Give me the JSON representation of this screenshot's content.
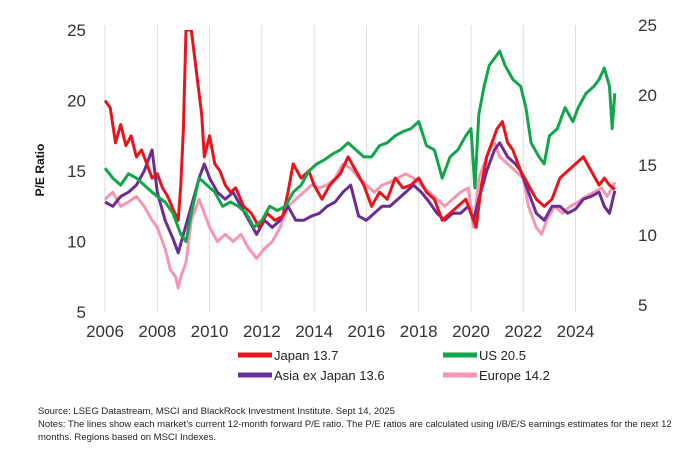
{
  "chart_data": {
    "type": "line",
    "ylabel": "P/E Ratio",
    "xlim": [
      2006,
      2025.7
    ],
    "ylim": [
      5,
      25
    ],
    "right_ylim": [
      5,
      25
    ],
    "x_ticks": [
      "2006",
      "2008",
      "2010",
      "2012",
      "2014",
      "2016",
      "2018",
      "2020",
      "2022",
      "2024"
    ],
    "y_ticks": [
      "5",
      "10",
      "15",
      "20",
      "25"
    ],
    "right_y_ticks": [
      "5",
      "10",
      "15",
      "20",
      "25"
    ],
    "grid": "vertical",
    "legend_position": "bottom",
    "series": [
      {
        "name": "Japan 13.7",
        "color": "#e8141c",
        "points": [
          [
            2006.0,
            20.0
          ],
          [
            2006.2,
            19.5
          ],
          [
            2006.4,
            17.0
          ],
          [
            2006.6,
            18.3
          ],
          [
            2006.8,
            16.8
          ],
          [
            2007.0,
            17.5
          ],
          [
            2007.2,
            16.0
          ],
          [
            2007.4,
            16.5
          ],
          [
            2007.6,
            15.5
          ],
          [
            2007.8,
            14.5
          ],
          [
            2008.0,
            14.8
          ],
          [
            2008.2,
            13.8
          ],
          [
            2008.4,
            13.2
          ],
          [
            2008.6,
            12.3
          ],
          [
            2008.8,
            11.5
          ],
          [
            2008.9,
            14.0
          ],
          [
            2009.0,
            18.0
          ],
          [
            2009.1,
            25.0
          ],
          [
            2009.3,
            25.0
          ],
          [
            2009.5,
            22.0
          ],
          [
            2009.7,
            19.0
          ],
          [
            2009.8,
            16.0
          ],
          [
            2010.0,
            17.5
          ],
          [
            2010.2,
            15.5
          ],
          [
            2010.4,
            15.0
          ],
          [
            2010.6,
            14.0
          ],
          [
            2010.8,
            13.5
          ],
          [
            2011.0,
            13.8
          ],
          [
            2011.3,
            12.5
          ],
          [
            2011.6,
            12.0
          ],
          [
            2011.9,
            11.0
          ],
          [
            2012.2,
            12.0
          ],
          [
            2012.5,
            11.5
          ],
          [
            2012.8,
            11.8
          ],
          [
            2013.0,
            13.5
          ],
          [
            2013.2,
            15.5
          ],
          [
            2013.5,
            14.5
          ],
          [
            2013.8,
            15.0
          ],
          [
            2014.0,
            14.0
          ],
          [
            2014.3,
            13.0
          ],
          [
            2014.6,
            14.0
          ],
          [
            2015.0,
            14.8
          ],
          [
            2015.3,
            16.0
          ],
          [
            2015.6,
            15.0
          ],
          [
            2015.9,
            14.0
          ],
          [
            2016.2,
            12.5
          ],
          [
            2016.5,
            13.5
          ],
          [
            2016.8,
            13.0
          ],
          [
            2017.1,
            14.5
          ],
          [
            2017.4,
            13.8
          ],
          [
            2017.7,
            14.0
          ],
          [
            2018.0,
            14.5
          ],
          [
            2018.3,
            13.5
          ],
          [
            2018.6,
            13.0
          ],
          [
            2018.9,
            11.5
          ],
          [
            2019.2,
            12.0
          ],
          [
            2019.5,
            12.5
          ],
          [
            2019.8,
            13.0
          ],
          [
            2020.0,
            12.0
          ],
          [
            2020.2,
            11.0
          ],
          [
            2020.4,
            14.0
          ],
          [
            2020.6,
            16.0
          ],
          [
            2020.8,
            17.0
          ],
          [
            2021.0,
            18.0
          ],
          [
            2021.2,
            18.5
          ],
          [
            2021.4,
            17.0
          ],
          [
            2021.6,
            16.5
          ],
          [
            2021.9,
            15.0
          ],
          [
            2022.2,
            14.0
          ],
          [
            2022.5,
            13.0
          ],
          [
            2022.8,
            12.5
          ],
          [
            2023.1,
            13.0
          ],
          [
            2023.4,
            14.5
          ],
          [
            2023.7,
            15.0
          ],
          [
            2024.0,
            15.5
          ],
          [
            2024.3,
            16.0
          ],
          [
            2024.6,
            15.0
          ],
          [
            2024.9,
            14.0
          ],
          [
            2025.1,
            14.5
          ],
          [
            2025.3,
            14.0
          ],
          [
            2025.5,
            13.7
          ]
        ]
      },
      {
        "name": "US 20.5",
        "color": "#12a54a",
        "points": [
          [
            2006.0,
            15.2
          ],
          [
            2006.3,
            14.5
          ],
          [
            2006.6,
            14.0
          ],
          [
            2006.9,
            14.8
          ],
          [
            2007.2,
            14.5
          ],
          [
            2007.5,
            14.0
          ],
          [
            2007.8,
            13.5
          ],
          [
            2008.0,
            13.2
          ],
          [
            2008.3,
            12.8
          ],
          [
            2008.6,
            12.0
          ],
          [
            2008.9,
            10.5
          ],
          [
            2009.1,
            10.0
          ],
          [
            2009.3,
            12.0
          ],
          [
            2009.6,
            14.5
          ],
          [
            2009.9,
            14.0
          ],
          [
            2010.2,
            13.5
          ],
          [
            2010.5,
            12.5
          ],
          [
            2010.8,
            12.8
          ],
          [
            2011.1,
            12.5
          ],
          [
            2011.4,
            12.0
          ],
          [
            2011.7,
            11.0
          ],
          [
            2012.0,
            11.5
          ],
          [
            2012.3,
            12.5
          ],
          [
            2012.6,
            12.2
          ],
          [
            2012.9,
            12.5
          ],
          [
            2013.2,
            13.5
          ],
          [
            2013.5,
            14.0
          ],
          [
            2013.8,
            15.0
          ],
          [
            2014.1,
            15.5
          ],
          [
            2014.4,
            15.8
          ],
          [
            2014.7,
            16.2
          ],
          [
            2015.0,
            16.5
          ],
          [
            2015.3,
            17.0
          ],
          [
            2015.6,
            16.5
          ],
          [
            2015.9,
            16.0
          ],
          [
            2016.2,
            16.0
          ],
          [
            2016.5,
            16.8
          ],
          [
            2016.8,
            17.0
          ],
          [
            2017.1,
            17.5
          ],
          [
            2017.4,
            17.8
          ],
          [
            2017.7,
            18.0
          ],
          [
            2018.0,
            18.5
          ],
          [
            2018.3,
            16.8
          ],
          [
            2018.6,
            16.5
          ],
          [
            2018.9,
            14.5
          ],
          [
            2019.2,
            16.0
          ],
          [
            2019.5,
            16.5
          ],
          [
            2019.8,
            17.5
          ],
          [
            2020.0,
            18.0
          ],
          [
            2020.15,
            13.8
          ],
          [
            2020.3,
            19.0
          ],
          [
            2020.5,
            21.0
          ],
          [
            2020.7,
            22.5
          ],
          [
            2020.9,
            23.0
          ],
          [
            2021.1,
            23.5
          ],
          [
            2021.3,
            22.5
          ],
          [
            2021.6,
            21.5
          ],
          [
            2021.9,
            21.0
          ],
          [
            2022.1,
            19.5
          ],
          [
            2022.3,
            17.0
          ],
          [
            2022.6,
            16.0
          ],
          [
            2022.8,
            15.5
          ],
          [
            2023.0,
            17.5
          ],
          [
            2023.3,
            18.0
          ],
          [
            2023.6,
            19.5
          ],
          [
            2023.9,
            18.5
          ],
          [
            2024.1,
            19.5
          ],
          [
            2024.4,
            20.5
          ],
          [
            2024.7,
            21.0
          ],
          [
            2024.9,
            21.5
          ],
          [
            2025.1,
            22.3
          ],
          [
            2025.3,
            21.0
          ],
          [
            2025.4,
            18.0
          ],
          [
            2025.5,
            20.5
          ]
        ]
      },
      {
        "name": "Asia ex Japan 13.6",
        "color": "#6b2d94",
        "points": [
          [
            2006.0,
            12.8
          ],
          [
            2006.3,
            12.5
          ],
          [
            2006.6,
            13.2
          ],
          [
            2006.9,
            13.5
          ],
          [
            2007.2,
            14.0
          ],
          [
            2007.5,
            15.0
          ],
          [
            2007.8,
            16.5
          ],
          [
            2008.0,
            13.5
          ],
          [
            2008.3,
            11.5
          ],
          [
            2008.6,
            10.2
          ],
          [
            2008.8,
            9.2
          ],
          [
            2009.0,
            10.5
          ],
          [
            2009.3,
            12.5
          ],
          [
            2009.6,
            14.5
          ],
          [
            2009.8,
            15.5
          ],
          [
            2010.0,
            14.5
          ],
          [
            2010.3,
            13.5
          ],
          [
            2010.6,
            13.0
          ],
          [
            2010.9,
            13.5
          ],
          [
            2011.2,
            12.5
          ],
          [
            2011.5,
            11.5
          ],
          [
            2011.8,
            10.5
          ],
          [
            2012.1,
            11.5
          ],
          [
            2012.4,
            11.0
          ],
          [
            2012.7,
            11.5
          ],
          [
            2013.0,
            12.5
          ],
          [
            2013.3,
            11.5
          ],
          [
            2013.6,
            11.5
          ],
          [
            2013.9,
            11.8
          ],
          [
            2014.2,
            12.0
          ],
          [
            2014.5,
            12.5
          ],
          [
            2014.8,
            12.8
          ],
          [
            2015.1,
            13.5
          ],
          [
            2015.4,
            14.0
          ],
          [
            2015.7,
            11.8
          ],
          [
            2016.0,
            11.5
          ],
          [
            2016.3,
            12.0
          ],
          [
            2016.6,
            12.5
          ],
          [
            2016.9,
            12.5
          ],
          [
            2017.2,
            13.0
          ],
          [
            2017.5,
            13.5
          ],
          [
            2017.8,
            14.0
          ],
          [
            2018.1,
            13.5
          ],
          [
            2018.4,
            12.8
          ],
          [
            2018.7,
            12.0
          ],
          [
            2019.0,
            11.5
          ],
          [
            2019.3,
            12.0
          ],
          [
            2019.6,
            12.0
          ],
          [
            2019.9,
            12.5
          ],
          [
            2020.1,
            11.5
          ],
          [
            2020.3,
            13.0
          ],
          [
            2020.6,
            15.0
          ],
          [
            2020.9,
            16.5
          ],
          [
            2021.1,
            17.0
          ],
          [
            2021.4,
            16.0
          ],
          [
            2021.7,
            15.5
          ],
          [
            2021.9,
            15.0
          ],
          [
            2022.2,
            13.5
          ],
          [
            2022.5,
            12.0
          ],
          [
            2022.8,
            11.5
          ],
          [
            2023.1,
            12.5
          ],
          [
            2023.4,
            12.5
          ],
          [
            2023.7,
            12.0
          ],
          [
            2024.0,
            12.3
          ],
          [
            2024.3,
            13.0
          ],
          [
            2024.6,
            13.2
          ],
          [
            2024.9,
            13.5
          ],
          [
            2025.1,
            12.5
          ],
          [
            2025.3,
            12.0
          ],
          [
            2025.5,
            13.6
          ]
        ]
      },
      {
        "name": "Europe  14.2",
        "color": "#f397b2",
        "points": [
          [
            2006.0,
            13.0
          ],
          [
            2006.3,
            13.5
          ],
          [
            2006.6,
            12.5
          ],
          [
            2006.9,
            12.8
          ],
          [
            2007.2,
            13.2
          ],
          [
            2007.5,
            12.5
          ],
          [
            2007.8,
            11.5
          ],
          [
            2008.0,
            11.0
          ],
          [
            2008.3,
            9.5
          ],
          [
            2008.5,
            8.0
          ],
          [
            2008.7,
            7.5
          ],
          [
            2008.8,
            6.7
          ],
          [
            2008.9,
            7.5
          ],
          [
            2009.1,
            8.5
          ],
          [
            2009.3,
            11.5
          ],
          [
            2009.6,
            13.0
          ],
          [
            2009.8,
            12.0
          ],
          [
            2010.0,
            11.0
          ],
          [
            2010.3,
            10.0
          ],
          [
            2010.6,
            10.5
          ],
          [
            2010.9,
            10.0
          ],
          [
            2011.2,
            10.5
          ],
          [
            2011.5,
            9.5
          ],
          [
            2011.8,
            8.8
          ],
          [
            2012.1,
            9.5
          ],
          [
            2012.4,
            10.0
          ],
          [
            2012.7,
            11.0
          ],
          [
            2013.0,
            12.5
          ],
          [
            2013.3,
            13.0
          ],
          [
            2013.6,
            13.5
          ],
          [
            2013.9,
            14.0
          ],
          [
            2014.2,
            13.8
          ],
          [
            2014.5,
            14.0
          ],
          [
            2014.8,
            14.5
          ],
          [
            2015.1,
            15.5
          ],
          [
            2015.4,
            15.2
          ],
          [
            2015.7,
            14.5
          ],
          [
            2016.0,
            14.0
          ],
          [
            2016.3,
            13.5
          ],
          [
            2016.6,
            14.0
          ],
          [
            2016.9,
            14.2
          ],
          [
            2017.2,
            14.5
          ],
          [
            2017.5,
            14.8
          ],
          [
            2017.8,
            14.5
          ],
          [
            2018.1,
            14.0
          ],
          [
            2018.4,
            13.5
          ],
          [
            2018.7,
            13.0
          ],
          [
            2019.0,
            12.5
          ],
          [
            2019.3,
            13.0
          ],
          [
            2019.6,
            13.5
          ],
          [
            2019.9,
            13.8
          ],
          [
            2020.1,
            11.0
          ],
          [
            2020.3,
            14.5
          ],
          [
            2020.5,
            15.5
          ],
          [
            2020.7,
            16.5
          ],
          [
            2020.9,
            17.0
          ],
          [
            2021.1,
            16.0
          ],
          [
            2021.4,
            15.5
          ],
          [
            2021.7,
            15.0
          ],
          [
            2022.0,
            14.5
          ],
          [
            2022.2,
            12.5
          ],
          [
            2022.5,
            11.0
          ],
          [
            2022.7,
            10.5
          ],
          [
            2022.9,
            11.5
          ],
          [
            2023.2,
            12.5
          ],
          [
            2023.5,
            12.0
          ],
          [
            2023.8,
            12.5
          ],
          [
            2024.1,
            12.8
          ],
          [
            2024.4,
            13.2
          ],
          [
            2024.7,
            13.5
          ],
          [
            2025.0,
            13.8
          ],
          [
            2025.2,
            13.2
          ],
          [
            2025.4,
            13.8
          ],
          [
            2025.5,
            14.2
          ]
        ]
      }
    ]
  },
  "notes": {
    "source": "Source: LSEG Datastream, MSCI and BlackRock Investment Institute. Sept 14, 2025",
    "line1": "Notes: The lines show each market’s current 12-month forward P/E ratio. The P/E ratios are calculated using I/B/E/S earnings estimates for the next 12",
    "line2": "months. Regions based on MSCI Indexes."
  }
}
